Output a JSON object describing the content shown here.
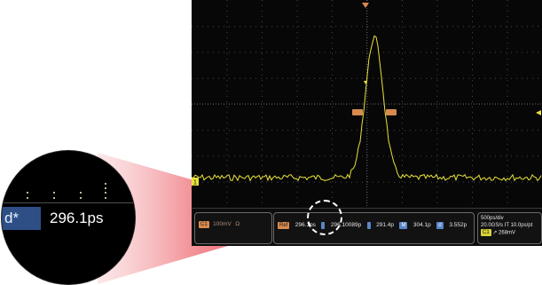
{
  "trace": {
    "ch1_marker": "1",
    "color": "#e8e23a",
    "grid_color": "#4a4a4a",
    "cursor_color": "#d98a4e"
  },
  "readout": {
    "ch1": {
      "tag": "C1",
      "scale": "100mV",
      "coupling": "Ω"
    },
    "measure": {
      "ref_tag": "Ref",
      "val1": "296.1ps",
      "tag2": "",
      "val2": "296.10089p",
      "tag3": "",
      "val3": "291.4p",
      "tag4": "M",
      "val4": "304.1p",
      "tag5": "σ",
      "val5": "3.552p"
    },
    "horizontal": {
      "timebase": "500ps/div",
      "sample_rate": "20.0GS/s IT 10.0ps/pt",
      "trig_tag": "C1",
      "trig_level": "268mV"
    }
  },
  "magnifier": {
    "label": "d*",
    "value": "296.1ps"
  },
  "colors": {
    "magnifier_beam": "#d9202a",
    "label_bg": "#2d4f86"
  }
}
